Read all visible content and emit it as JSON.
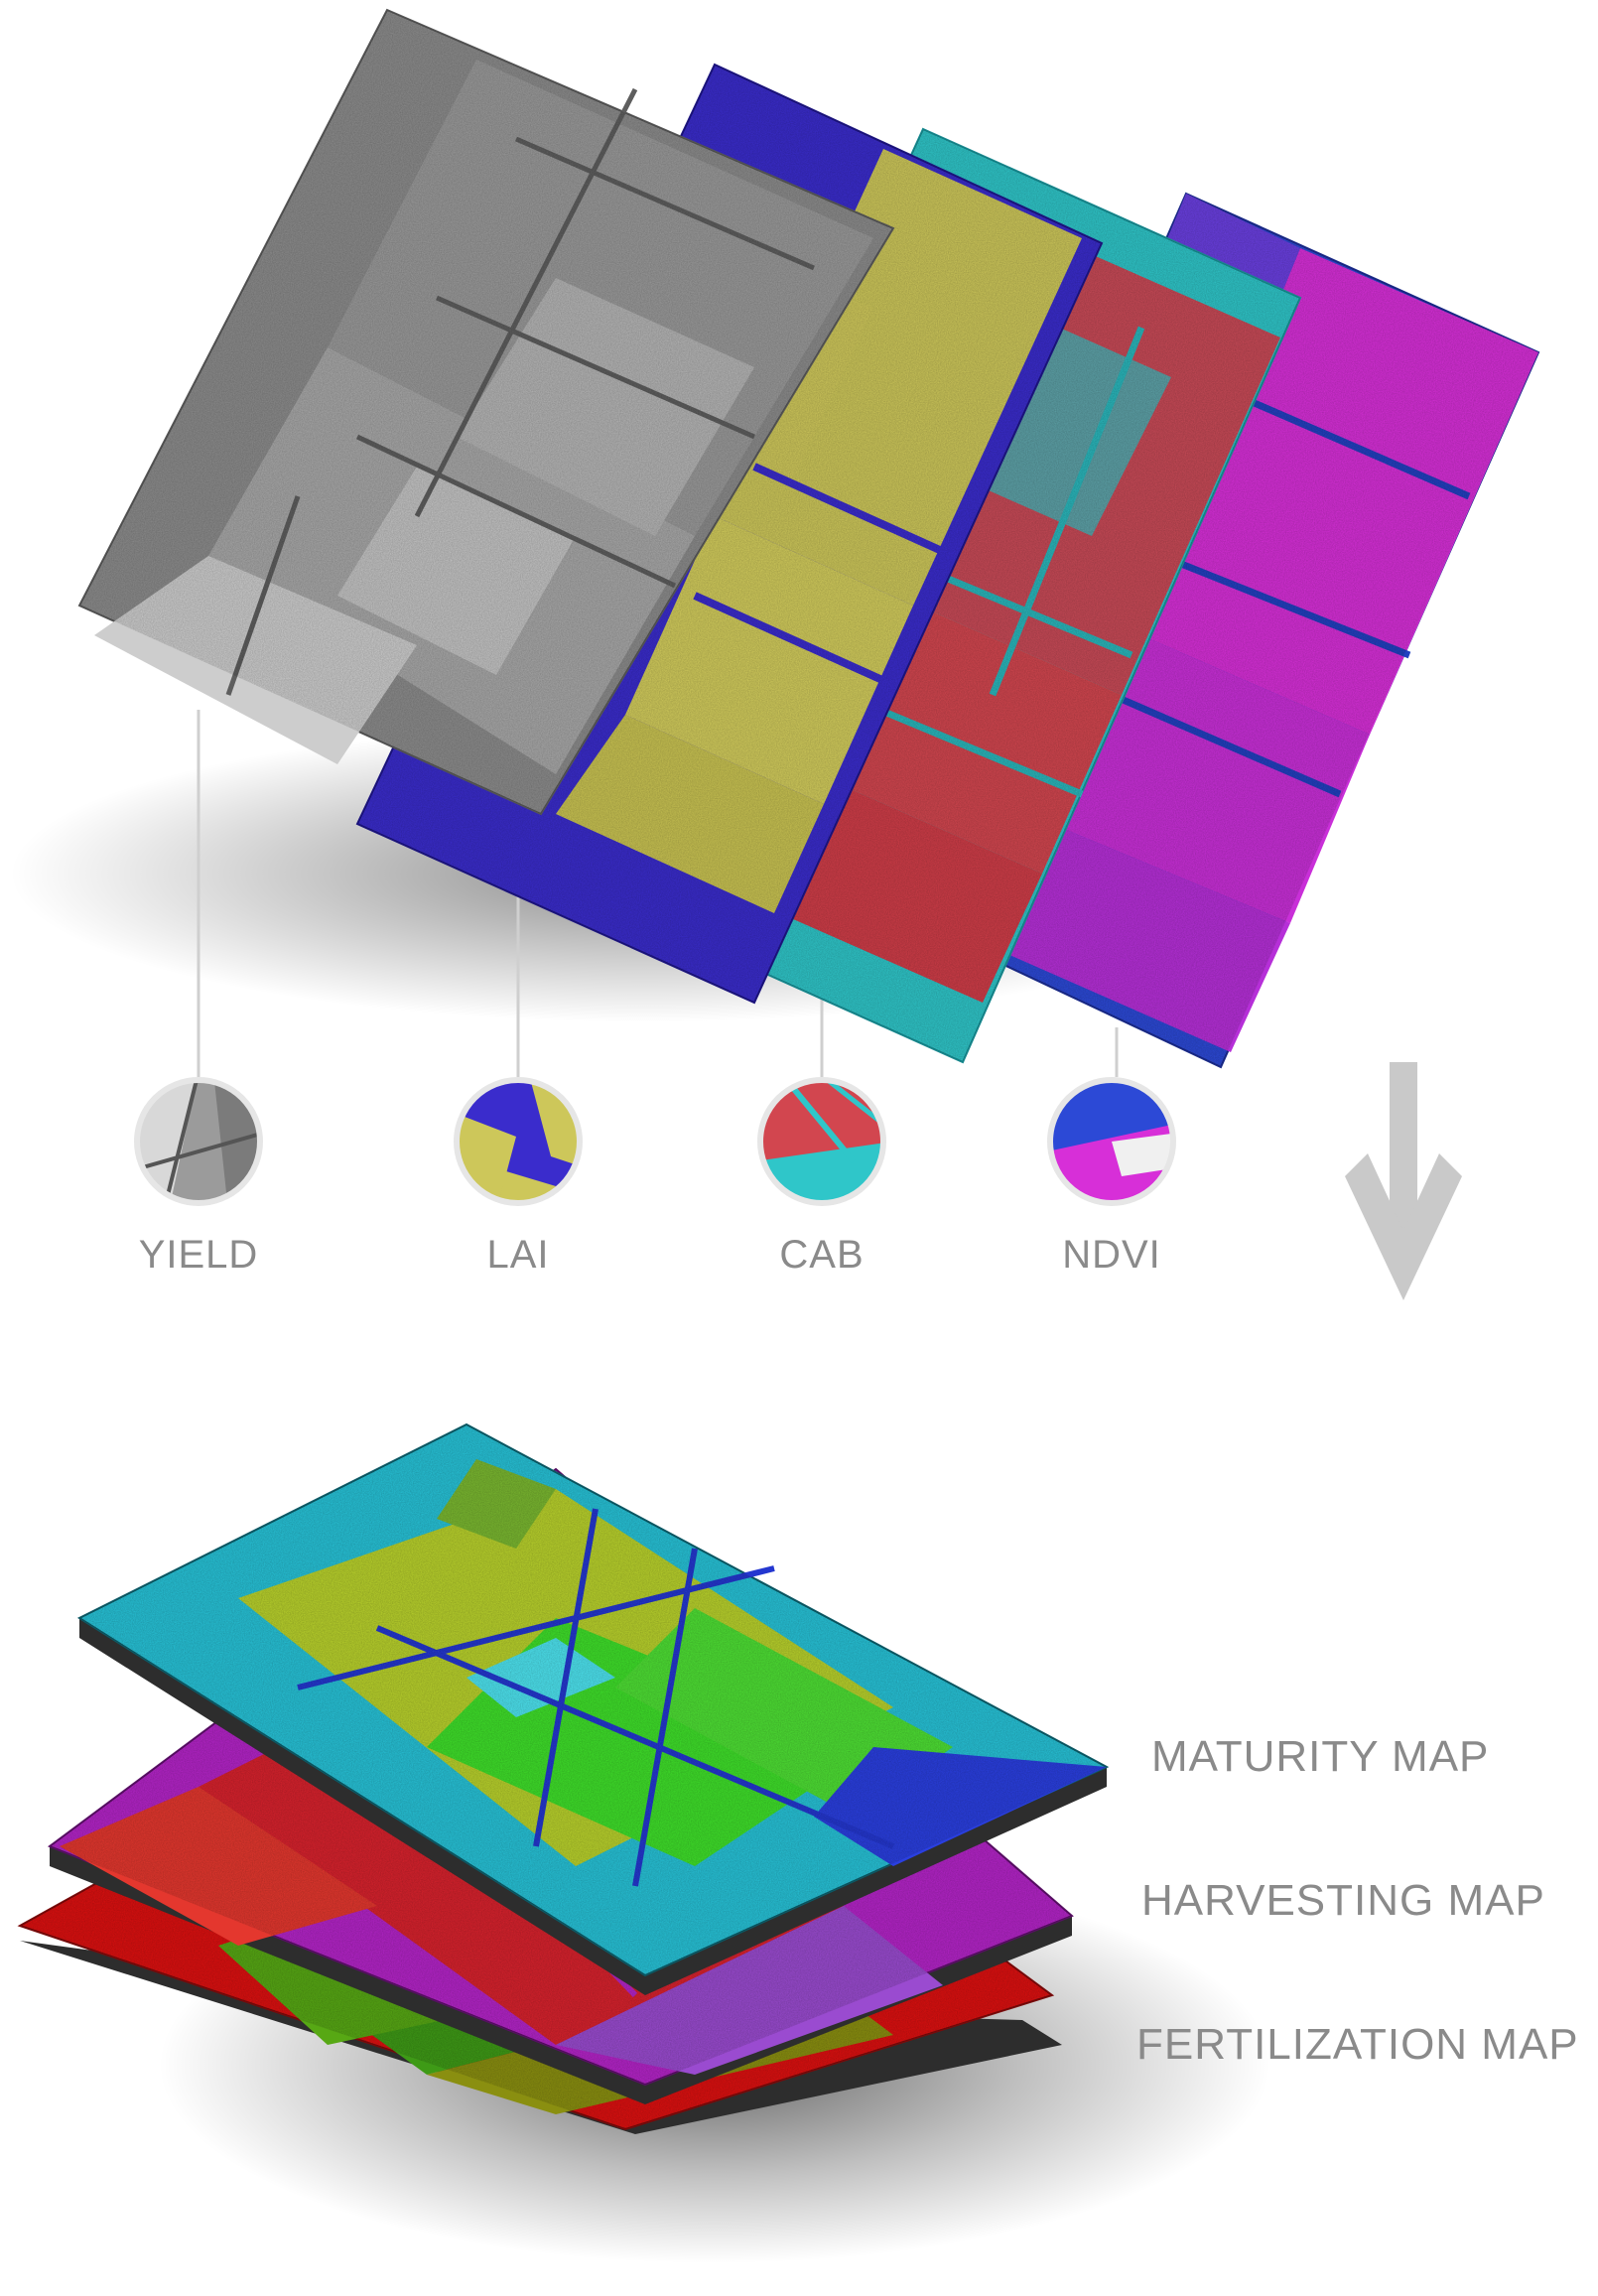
{
  "index_layers": [
    {
      "label": "YIELD",
      "palette": "grayscale"
    },
    {
      "label": "LAI",
      "palette": "blue-yellow"
    },
    {
      "label": "CAB",
      "palette": "cyan-red"
    },
    {
      "label": "NDVI",
      "palette": "blue-magenta"
    }
  ],
  "output_maps": [
    {
      "label": "MATURITY MAP",
      "palette": "cyan-yellow-green"
    },
    {
      "label": "HARVESTING MAP",
      "palette": "magenta-red"
    },
    {
      "label": "FERTILIZATION MAP",
      "palette": "red-green"
    }
  ],
  "arrow_icon": "down-arrow-icon",
  "colors": {
    "label_text": "#8a8a8a",
    "arrow": "#c9c9c9",
    "gray_a": "#7a7a7a",
    "gray_b": "#b8b8b8",
    "lai_blue": "#3a2ccc",
    "lai_yellow": "#cdc75a",
    "cab_cyan": "#2fc6c9",
    "cab_red": "#d2464f",
    "ndvi_blue": "#2c49d6",
    "ndvi_magenta": "#d72fd8",
    "mat_cyan": "#27c3d8",
    "mat_yellow": "#b9d22c",
    "mat_green": "#3fe02a",
    "harv_magenta": "#b424c8",
    "harv_red": "#d8222d",
    "fert_red": "#dd1010",
    "fert_green": "#3e9a16"
  }
}
